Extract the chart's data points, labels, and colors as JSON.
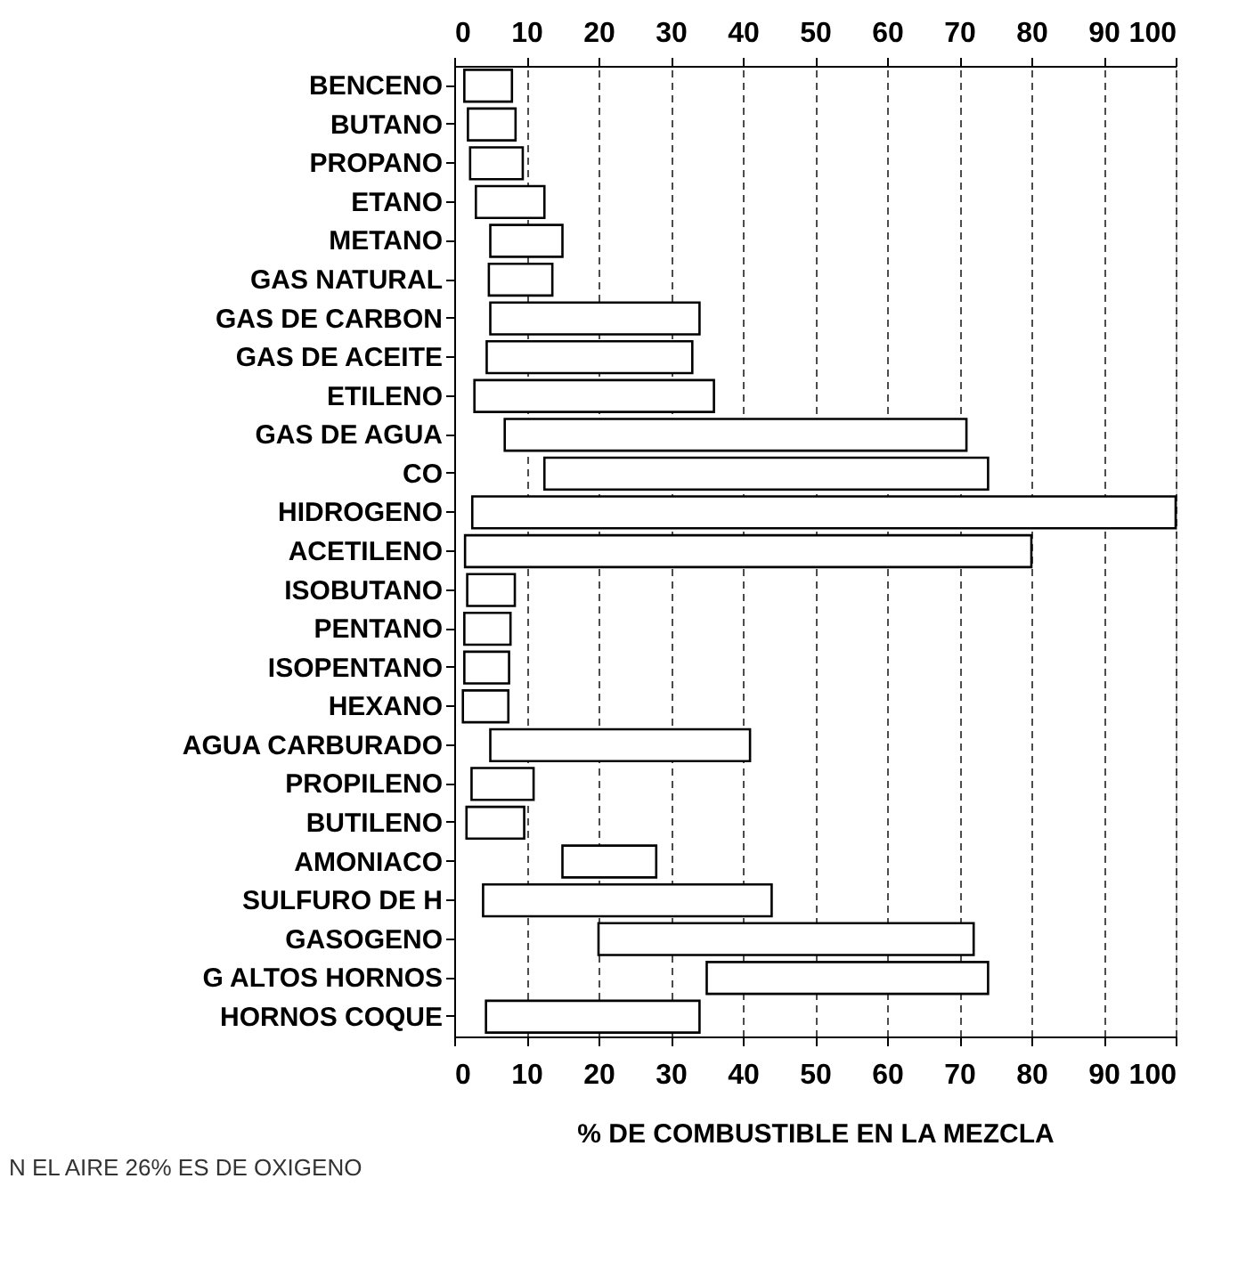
{
  "chart_data": {
    "type": "bar",
    "orientation": "horizontal",
    "categories": [
      "BENCENO",
      "BUTANO",
      "PROPANO",
      "ETANO",
      "METANO",
      "GAS NATURAL",
      "GAS DE CARBON",
      "GAS DE ACEITE",
      "ETILENO",
      "GAS DE AGUA",
      "CO",
      "HIDROGENO",
      "ACETILENO",
      "ISOBUTANO",
      "PENTANO",
      "ISOPENTANO",
      "HEXANO",
      "AGUA CARBURADO",
      "PROPILENO",
      "BUTILENO",
      "AMONIACO",
      "SULFURO DE H",
      "GASOGENO",
      "G ALTOS HORNOS",
      "HORNOS COQUE"
    ],
    "base": [
      1.4,
      1.9,
      2.2,
      3,
      5,
      4.8,
      5,
      4.5,
      2.8,
      7,
      12.5,
      2.5,
      1.5,
      1.8,
      1.4,
      1.4,
      1.2,
      5,
      2.4,
      1.7,
      15,
      4,
      20,
      35,
      4.4
    ],
    "values": [
      6.6,
      6.6,
      7.3,
      9.5,
      10,
      8.8,
      29,
      28.5,
      33.2,
      64,
      61.5,
      97.5,
      78.5,
      6.6,
      6.4,
      6.2,
      6.3,
      36,
      8.6,
      8,
      13,
      40,
      52,
      39,
      29.6
    ],
    "color": "#ffffff",
    "xlim": [
      0,
      100
    ],
    "xticks": [
      0,
      10,
      20,
      30,
      40,
      50,
      60,
      70,
      80,
      90,
      100
    ],
    "x2lim": [
      0,
      100
    ],
    "x2ticks": [
      0,
      10,
      20,
      30,
      40,
      50,
      60,
      70,
      80,
      90,
      100
    ],
    "xlabel": "% DE COMBUSTIBLE EN LA MEZCLA",
    "grid": "x",
    "line_style": "dashed",
    "annotations": [
      "N EL AIRE 26% ES DE OXIGENO"
    ]
  }
}
